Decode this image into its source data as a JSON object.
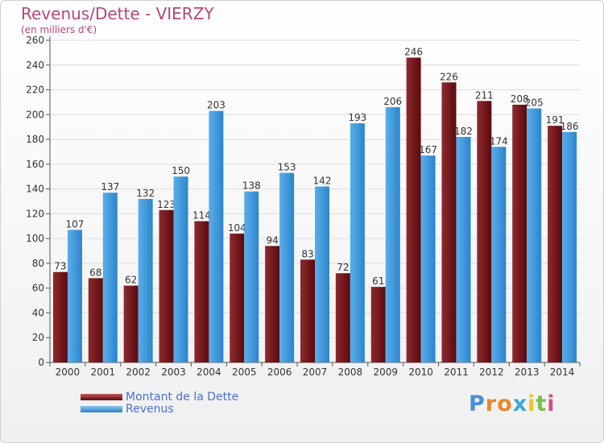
{
  "header": {
    "title": "Revenus/Dette - VIERZY",
    "subtitle": "(en milliers d'€)"
  },
  "logo": {
    "text": "Proxiti",
    "colors": [
      "#4a8fd6",
      "#e8872a",
      "#e8872a",
      "#3aa8d8",
      "#f2c230",
      "#7cc04a",
      "#d44c8a"
    ]
  },
  "chart_data": {
    "type": "bar",
    "categories": [
      "2000",
      "2001",
      "2002",
      "2003",
      "2004",
      "2005",
      "2006",
      "2007",
      "2008",
      "2009",
      "2010",
      "2011",
      "2012",
      "2013",
      "2014"
    ],
    "series": [
      {
        "name": "Montant de la Dette",
        "color": "#7a1a1e",
        "values": [
          73,
          68,
          62,
          123,
          114,
          104,
          94,
          83,
          72,
          61,
          246,
          226,
          211,
          208,
          191
        ]
      },
      {
        "name": "Revenus",
        "color": "#3a97de",
        "values": [
          107,
          137,
          132,
          150,
          203,
          138,
          153,
          142,
          193,
          206,
          167,
          182,
          174,
          205,
          186
        ]
      }
    ],
    "ylim": [
      0,
      260
    ],
    "yticks": [
      0,
      20,
      40,
      60,
      80,
      100,
      120,
      140,
      160,
      180,
      200,
      220,
      240,
      260
    ],
    "grid": true,
    "legend_position": "bottom-left"
  }
}
